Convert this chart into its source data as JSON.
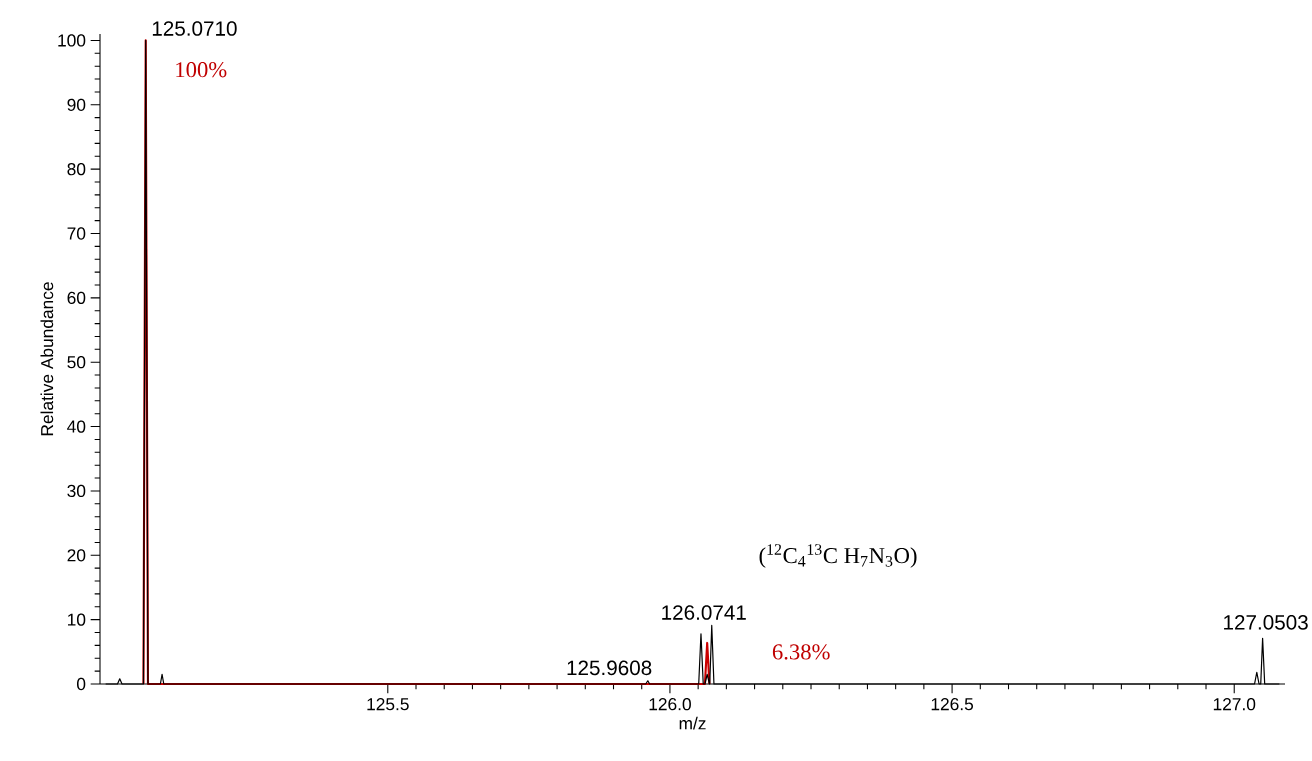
{
  "chart_data": {
    "type": "line",
    "xlabel": "m/z",
    "ylabel": "Relative Abundance",
    "xlim": [
      124.99,
      127.09
    ],
    "ylim": [
      0,
      101
    ],
    "xticks": [
      {
        "value": 125.5,
        "label": "125.5"
      },
      {
        "value": 126.0,
        "label": "126.0"
      },
      {
        "value": 126.5,
        "label": "126.5"
      },
      {
        "value": 127.0,
        "label": "127.0"
      }
    ],
    "yticks": [
      0,
      10,
      20,
      30,
      40,
      50,
      60,
      70,
      80,
      90,
      100
    ],
    "grid": false,
    "series": [
      {
        "color": "#cc0000",
        "x": [
          125.067,
          125.071,
          125.075,
          126.062,
          126.066,
          126.07
        ],
        "values": [
          0,
          100,
          0,
          0,
          6.38,
          0
        ]
      },
      {
        "color": "#000000",
        "x": [
          125.0,
          125.021,
          125.025,
          125.029,
          125.067,
          125.071,
          125.075,
          125.097,
          125.1,
          125.103,
          125.957,
          125.9608,
          125.964,
          126.051,
          126.055,
          126.059,
          126.062,
          126.066,
          126.07,
          126.0705,
          126.0741,
          126.078,
          127.036,
          127.04,
          127.044,
          127.047,
          127.0503,
          127.054,
          127.08
        ],
        "values": [
          0,
          0,
          0.8,
          0,
          0,
          100,
          0,
          0,
          1.5,
          0,
          0,
          0.5,
          0,
          0,
          7.8,
          0,
          0,
          1.5,
          0,
          0,
          9.1,
          0,
          0,
          1.8,
          0,
          0,
          7.1,
          0,
          0
        ]
      }
    ],
    "annotations": [
      {
        "text": "125.0710",
        "x": 125.071,
        "y": 100
      },
      {
        "text": "100%",
        "x": 125.071,
        "y": 100
      },
      {
        "text": "125.9608",
        "x": 125.9608,
        "y": 0.5
      },
      {
        "text": "126.0741",
        "x": 126.0741,
        "y": 9.1
      },
      "($^{12}$C$_{4}$$^{13}$C H$_{7}$N$_{3}$O)",
      {
        "text": "6.38%",
        "x": 126.066,
        "y": 6.38
      },
      {
        "text": "127.0503",
        "x": 127.0503,
        "y": 7.1
      }
    ]
  }
}
